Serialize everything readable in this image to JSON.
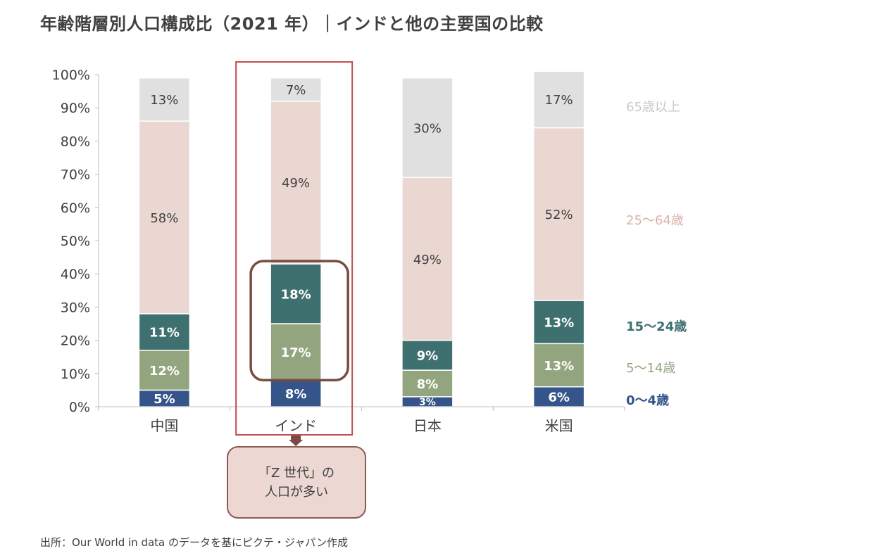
{
  "title": "年齢階層別人口構成比（2021 年）｜インドと他の主要国の比較",
  "source": "出所：Our World in data のデータを基にピクテ・ジャパン作成",
  "callout": {
    "line1": "「Z 世代」の",
    "line2": "人口が多い"
  },
  "colors": {
    "age_65_plus": "#e0e0e0",
    "age_25_64": "#ead7d1",
    "age_15_24": "#3f7070",
    "age_5_14": "#93a57f",
    "age_0_4": "#35558a",
    "highlight_rect": "#c0504d",
    "highlight_rounded": "#7a4a40",
    "axis": "#bfbfbf"
  },
  "chart_data": {
    "type": "bar",
    "stacked": true,
    "categories": [
      "中国",
      "インド",
      "日本",
      "米国"
    ],
    "ylim": [
      0,
      100
    ],
    "yticks": [
      "0%",
      "10%",
      "20%",
      "30%",
      "40%",
      "50%",
      "60%",
      "70%",
      "80%",
      "90%",
      "100%"
    ],
    "series": [
      {
        "name": "0〜4歳",
        "key": "age_0_4",
        "values": [
          5,
          8,
          3,
          6
        ],
        "labels": [
          "5%",
          "8%",
          "3%",
          "6%"
        ],
        "label_color": "#ffffff"
      },
      {
        "name": "5〜14歳",
        "key": "age_5_14",
        "values": [
          12,
          17,
          8,
          13
        ],
        "labels": [
          "12%",
          "17%",
          "8%",
          "13%"
        ],
        "label_color": "#ffffff"
      },
      {
        "name": "15〜24歳",
        "key": "age_15_24",
        "values": [
          11,
          18,
          9,
          13
        ],
        "labels": [
          "11%",
          "18%",
          "9%",
          "13%"
        ],
        "label_color": "#ffffff"
      },
      {
        "name": "25〜64歳",
        "key": "age_25_64",
        "values": [
          58,
          49,
          49,
          52
        ],
        "labels": [
          "58%",
          "49%",
          "49%",
          "52%"
        ],
        "label_color": "#404040"
      },
      {
        "name": "65歳以上",
        "key": "age_65_plus",
        "values": [
          13,
          7,
          30,
          17
        ],
        "labels": [
          "13%",
          "7%",
          "30%",
          "17%"
        ],
        "label_color": "#404040"
      }
    ],
    "legend_placement": "right, beside stacks",
    "highlight_category": "インド"
  }
}
